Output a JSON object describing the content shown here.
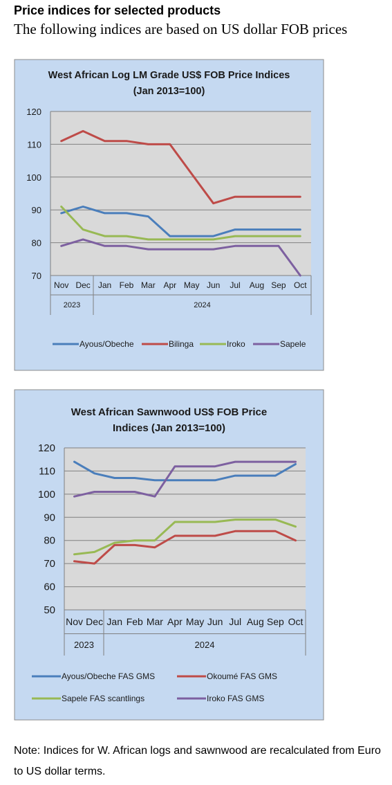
{
  "heading": "Price indices for selected products",
  "subheading": "The following indices are based on US dollar FOB prices",
  "note": "Note: Indices for W. African logs and sawnwood are recalculated from Euro to US dollar terms.",
  "colors": {
    "frame_bg": "#c5d9f1",
    "plot_bg": "#d9d9d9",
    "blue": "#4a7ebb",
    "red": "#be4b48",
    "green": "#98b954",
    "purple": "#7d60a0"
  },
  "chart_data": [
    {
      "type": "line",
      "title_lines": [
        "West African Log LM Grade US$ FOB Price Indices",
        "(Jan 2013=100)"
      ],
      "categories": [
        "Nov",
        "Dec",
        "Jan",
        "Feb",
        "Mar",
        "Apr",
        "May",
        "Jun",
        "Jul",
        "Aug",
        "Sep",
        "Oct"
      ],
      "year_labels": [
        "2023",
        "2024"
      ],
      "ylim": [
        70,
        120
      ],
      "yticks": [
        "70",
        "80",
        "90",
        "100",
        "110",
        "120"
      ],
      "grid": true,
      "legend_position": "bottom",
      "series": [
        {
          "name": "Ayous/Obeche",
          "color": "#4a7ebb",
          "values": [
            89,
            91,
            89,
            89,
            88,
            82,
            82,
            82,
            84,
            84,
            84,
            84
          ]
        },
        {
          "name": "Bilinga",
          "color": "#be4b48",
          "values": [
            111,
            114,
            111,
            111,
            110,
            110,
            101,
            92,
            94,
            94,
            94,
            94
          ]
        },
        {
          "name": "Iroko",
          "color": "#98b954",
          "values": [
            91,
            84,
            82,
            82,
            81,
            81,
            81,
            81,
            82,
            82,
            82,
            82
          ]
        },
        {
          "name": "Sapele",
          "color": "#7d60a0",
          "values": [
            79,
            81,
            79,
            79,
            78,
            78,
            78,
            78,
            79,
            79,
            79,
            70
          ]
        }
      ]
    },
    {
      "type": "line",
      "title_lines": [
        "West African Sawnwood US$ FOB Price",
        "Indices (Jan 2013=100)"
      ],
      "categories": [
        "Nov",
        "Dec",
        "Jan",
        "Feb",
        "Mar",
        "Apr",
        "May",
        "Jun",
        "Jul",
        "Aug",
        "Sep",
        "Oct"
      ],
      "year_labels": [
        "2023",
        "2024"
      ],
      "ylim": [
        50,
        120
      ],
      "yticks": [
        "50",
        "60",
        "70",
        "80",
        "90",
        "100",
        "110",
        "120"
      ],
      "grid": true,
      "legend_position": "bottom",
      "series": [
        {
          "name": "Ayous/Obeche  FAS GMS",
          "color": "#4a7ebb",
          "values": [
            114,
            109,
            107,
            107,
            106,
            106,
            106,
            106,
            108,
            108,
            108,
            113
          ]
        },
        {
          "name": "Okoumé  FAS GMS",
          "color": "#be4b48",
          "values": [
            71,
            70,
            78,
            78,
            77,
            82,
            82,
            82,
            84,
            84,
            84,
            80
          ]
        },
        {
          "name": "Sapele FAS scantlings",
          "color": "#98b954",
          "values": [
            74,
            75,
            79,
            80,
            80,
            88,
            88,
            88,
            89,
            89,
            89,
            86
          ]
        },
        {
          "name": "Iroko FAS GMS",
          "color": "#7d60a0",
          "values": [
            99,
            101,
            101,
            101,
            99,
            112,
            112,
            112,
            114,
            114,
            114,
            114
          ]
        }
      ]
    }
  ]
}
